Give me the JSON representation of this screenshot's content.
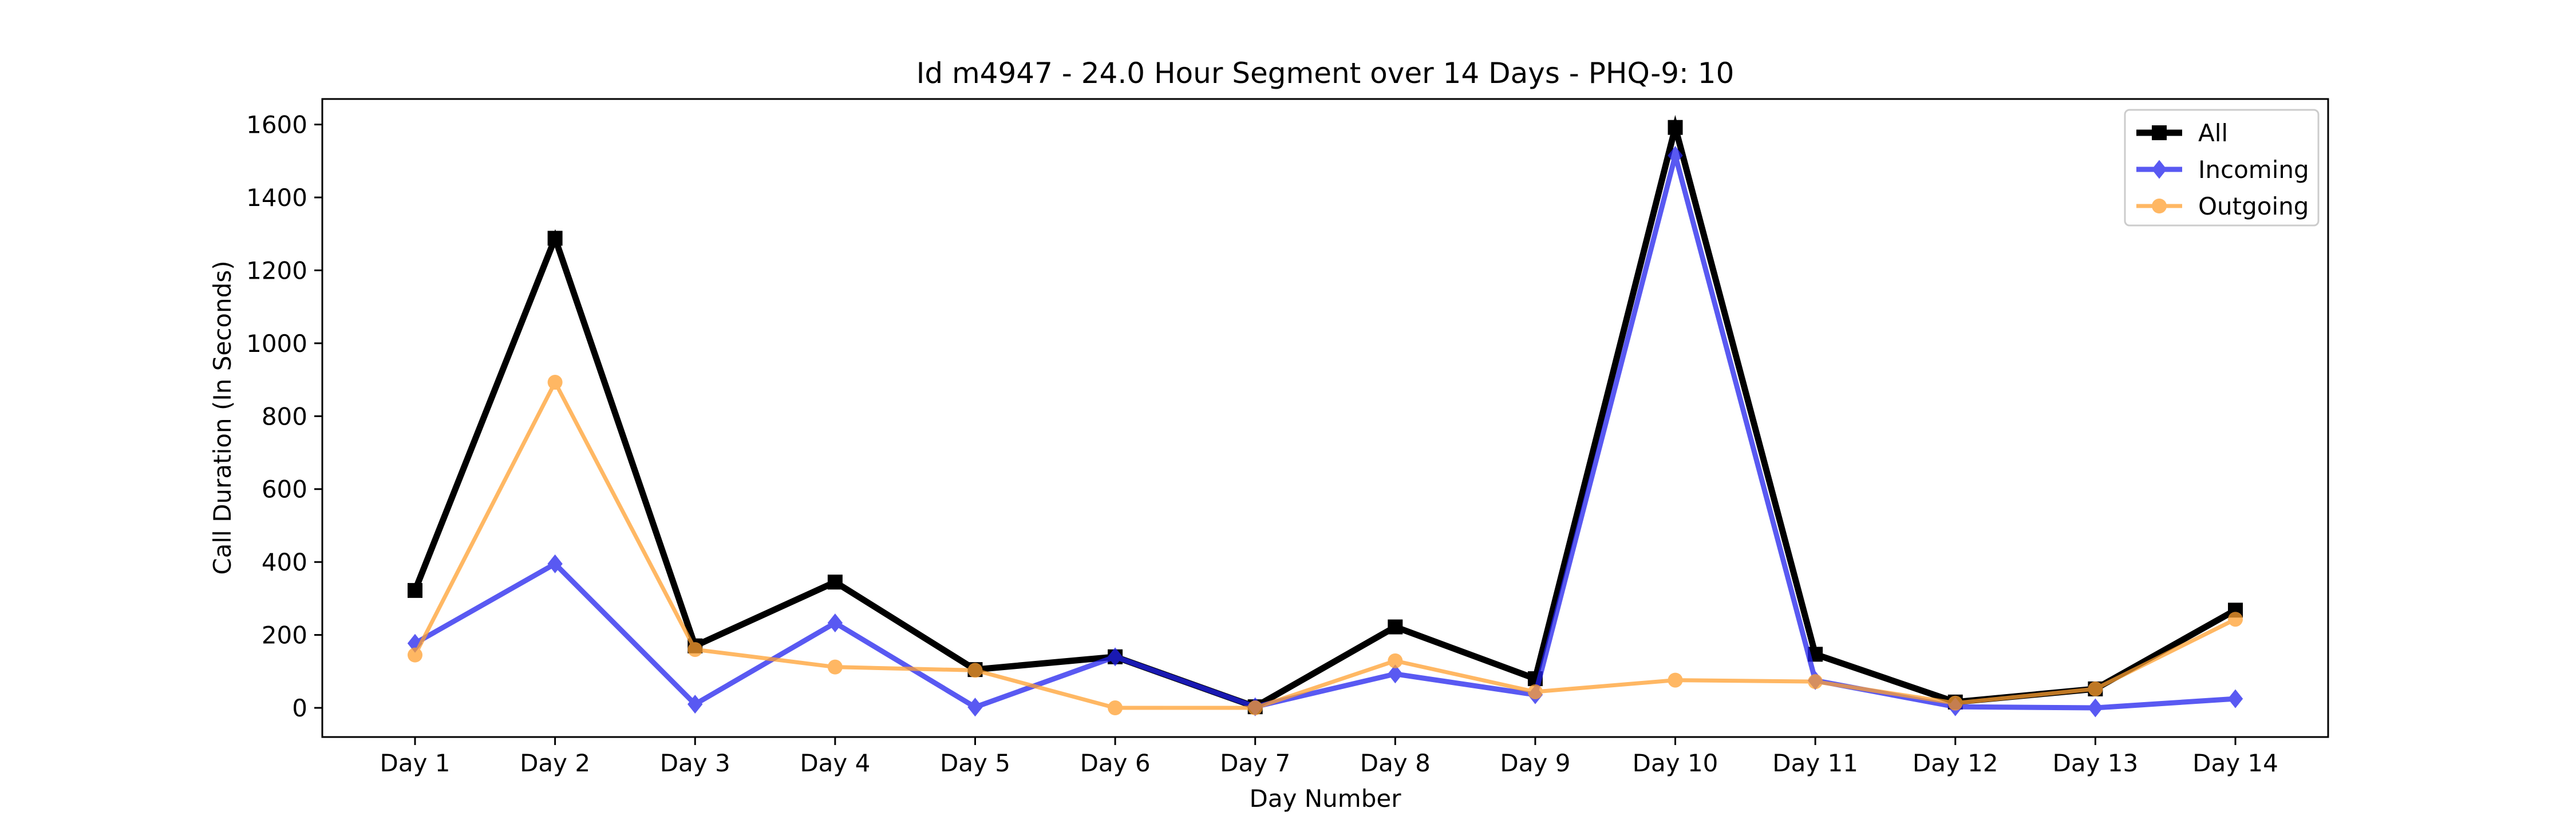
{
  "chart_data": {
    "type": "line",
    "title": "Id m4947 - 24.0 Hour Segment over 14 Days - PHQ-9: 10",
    "xlabel": "Day Number",
    "ylabel": "Call Duration (In Seconds)",
    "categories": [
      "Day 1",
      "Day 2",
      "Day 3",
      "Day 4",
      "Day 5",
      "Day 6",
      "Day 7",
      "Day 8",
      "Day 9",
      "Day 10",
      "Day 11",
      "Day 12",
      "Day 13",
      "Day 14"
    ],
    "ylim": [
      -80,
      1670
    ],
    "yticks": [
      0,
      200,
      400,
      600,
      800,
      1000,
      1200,
      1400,
      1600
    ],
    "grid": false,
    "legend_position": "top-right",
    "series": [
      {
        "name": "All",
        "color": "#000000",
        "marker": "square",
        "values": [
          322,
          1288,
          170,
          345,
          105,
          140,
          3,
          222,
          80,
          1592,
          147,
          16,
          52,
          268
        ]
      },
      {
        "name": "Incoming",
        "color": "#2222ee",
        "marker": "diamond",
        "values": [
          177,
          395,
          10,
          233,
          2,
          140,
          3,
          93,
          36,
          1515,
          75,
          3,
          0,
          25
        ]
      },
      {
        "name": "Outgoing",
        "color": "#ffa030",
        "marker": "circle",
        "values": [
          145,
          893,
          160,
          112,
          103,
          0,
          0,
          129,
          44,
          76,
          72,
          13,
          52,
          243
        ]
      }
    ]
  }
}
